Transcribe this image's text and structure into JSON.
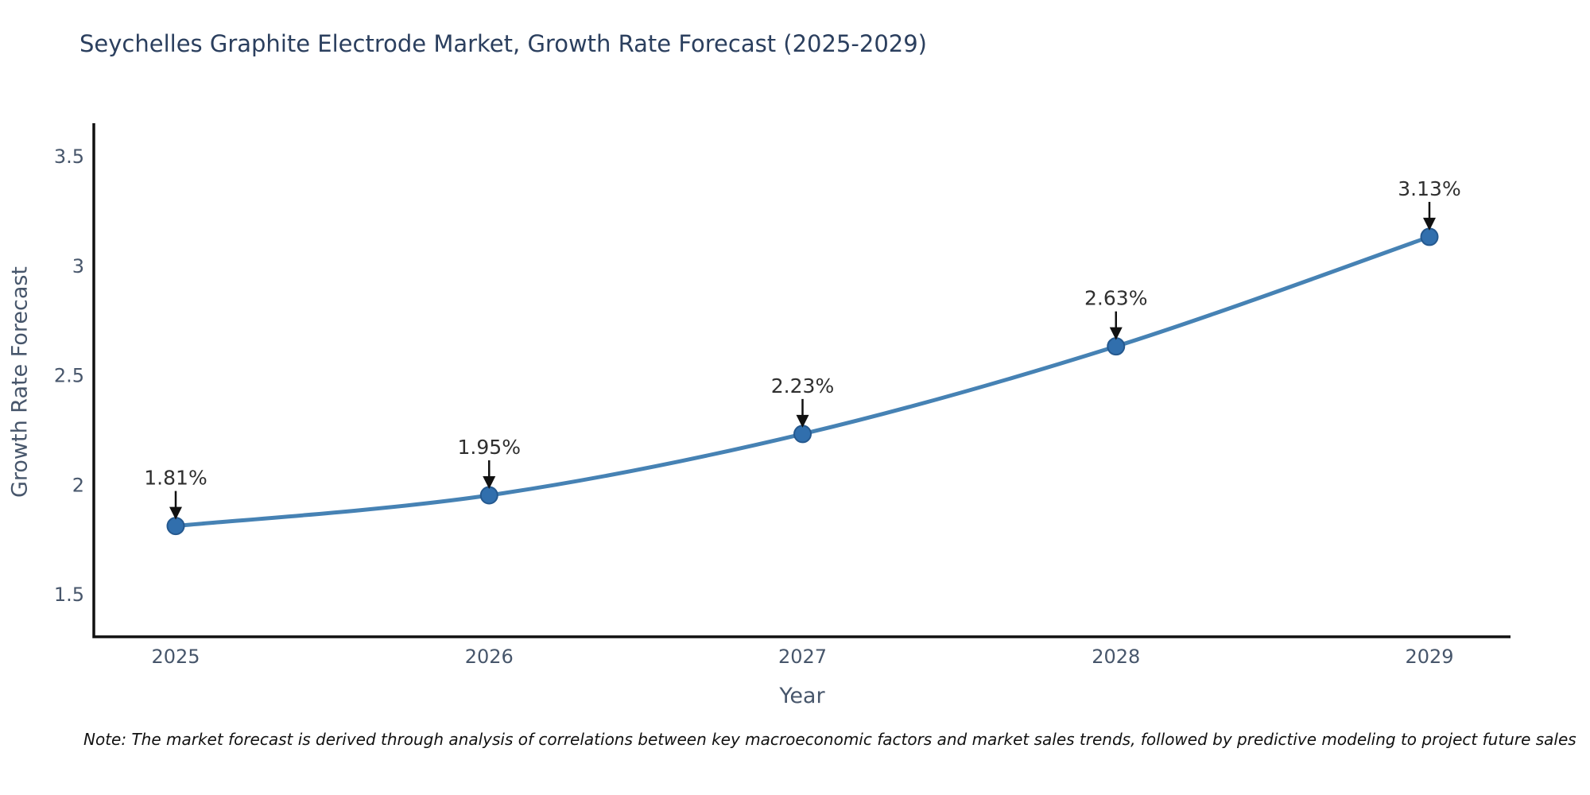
{
  "chart_data": {
    "type": "line",
    "title": "Seychelles Graphite Electrode Market, Growth Rate Forecast (2025-2029)",
    "xlabel": "Year",
    "ylabel": "Growth Rate Forecast",
    "x": [
      2025,
      2026,
      2027,
      2028,
      2029
    ],
    "x_tick_labels": [
      "2025",
      "2026",
      "2027",
      "2028",
      "2029"
    ],
    "values": [
      1.81,
      1.95,
      2.23,
      2.63,
      3.13
    ],
    "point_labels": [
      "1.81%",
      "1.95%",
      "2.23%",
      "2.63%",
      "3.13%"
    ],
    "y_ticks": [
      1.5,
      2,
      2.5,
      3,
      3.5
    ],
    "y_tick_labels": [
      "1.5",
      "2",
      "2.5",
      "3",
      "3.5"
    ],
    "ylim": [
      1.31,
      3.65
    ],
    "grid": false,
    "legend": null,
    "line_color": "#4682b4",
    "marker_color": "#316fad",
    "marker_edge_color": "#25598f",
    "axis_color": "#111111",
    "annotation_arrow_color": "#111111"
  },
  "note": {
    "text": "Note: The market forecast is derived through analysis of correlations between key macroeconomic factors and market sales trends, followed by predictive modeling to project future sales"
  }
}
